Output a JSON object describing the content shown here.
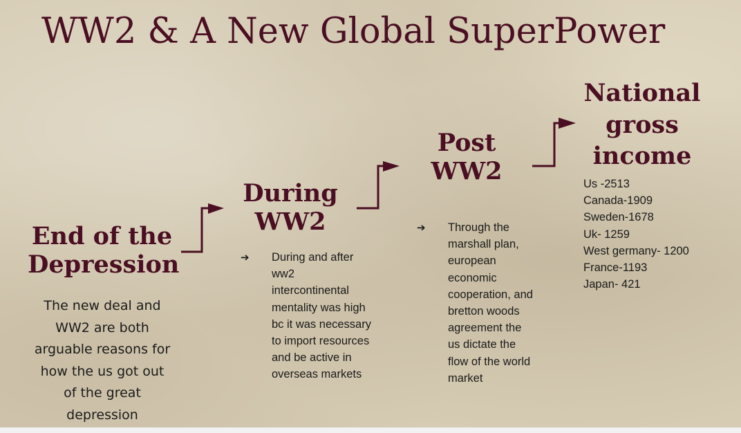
{
  "slide": {
    "title": "WW2 & A New Global SuperPower",
    "sections": {
      "depression": {
        "heading_line1": "End of the",
        "heading_line2": "Depression",
        "text": "The new deal and WW2 are both arguable reasons for how the us got out of the great depression"
      },
      "during": {
        "heading_line1": "During",
        "heading_line2": "WW2",
        "bullet_icon": "right-arrow-icon",
        "bullet_glyph": "➔",
        "bullet": "During and after ww2 intercontinental mentality was high bc it was necessary to import resources and be active in overseas markets"
      },
      "post": {
        "heading_line1": "Post",
        "heading_line2": "WW2",
        "bullet_icon": "right-arrow-icon",
        "bullet_glyph": "➔",
        "bullet": "Through the marshall plan, european economic cooperation, and bretton woods agreement the us dictate the flow of the world market"
      },
      "income": {
        "heading_line1": "National",
        "heading_line2": "gross",
        "heading_line3": "income",
        "items": [
          "Us -2513",
          "Canada-1909",
          "Sweden-1678",
          "Uk- 1259",
          "West germany- 1200",
          "France-1193",
          "Japan- 421"
        ]
      }
    },
    "colors": {
      "heading": "#4a0f22",
      "body_text": "#1a1a1a",
      "background": "#d6ccb4",
      "connector_arrow": "#4a0f22"
    }
  }
}
